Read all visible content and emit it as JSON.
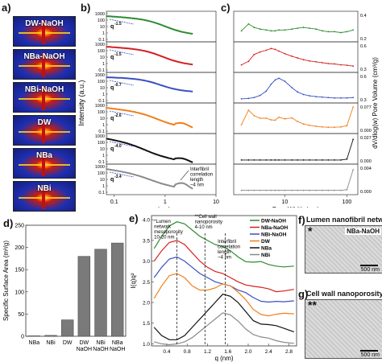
{
  "panels": {
    "a": "a)",
    "b": "b)",
    "c": "c)",
    "d": "d)",
    "e": "e)",
    "f": "f)",
    "g": "g)"
  },
  "colors": {
    "dw_naoh": "#2e8b2e",
    "nba_naoh": "#d42020",
    "nbi_naoh": "#3a4fc0",
    "dw": "#f07f1a",
    "nba": "#111111",
    "nbi": "#8a8a8a",
    "bar": "#7a7a7a"
  },
  "saxs_images": [
    "DW-NaOH",
    "NBa-NaOH",
    "NBi-NaOH",
    "DW",
    "NBa",
    "NBi"
  ],
  "micrographs": {
    "f_title": "Lumen nanofibril network",
    "f_tag": "NBa-NaOH",
    "f_star": "*",
    "g_title": "Cell wall nanoporosity",
    "g_star": "**",
    "scale": "500 nm"
  },
  "chart_data": [
    {
      "id": "b",
      "type": "line",
      "xlabel": "q (nm)",
      "ylabel": "Intensity (a.u.)",
      "x_scale": "log",
      "xlim": [
        0.07,
        10
      ],
      "x_ticks": [
        "0.1",
        "1",
        "10"
      ],
      "y_ticks": [
        "1000",
        "100",
        "10",
        "1",
        "0.1"
      ],
      "series": [
        {
          "name": "DW-NaOH",
          "slope_label": "q",
          "slope_exp": "-1.5"
        },
        {
          "name": "NBa-NaOH",
          "slope_label": "q",
          "slope_exp": "-1.5"
        },
        {
          "name": "NBi-NaOH",
          "slope_label": "q",
          "slope_exp": "-0.7"
        },
        {
          "name": "DW",
          "slope_label": "q",
          "slope_exp": "-2.6"
        },
        {
          "name": "NBa",
          "slope_label": "q",
          "slope_exp": "-4.0"
        },
        {
          "name": "NBi",
          "slope_label": "q",
          "slope_exp": "-3.4"
        }
      ],
      "annotation": "Interfibril correlation length ~4 nm"
    },
    {
      "id": "c",
      "type": "line",
      "xlabel": "Pore Width (nm)",
      "ylabel": "dV/dlog(w) Pore Volume (cm³/g)",
      "x_scale": "log",
      "xlim": [
        1.5,
        150
      ],
      "x_ticks": [
        "10",
        "100"
      ],
      "right_ticks": [
        [
          "0.4",
          "0.2"
        ],
        [
          "0.6",
          "0.3"
        ],
        [
          "0.6",
          "0.3"
        ],
        [
          "0.077",
          "0.000"
        ],
        [
          "0.027",
          "0.000"
        ],
        [
          "0.004",
          "0.000"
        ]
      ],
      "series": [
        {
          "name": "DW-NaOH",
          "x": [
            2,
            2.6,
            3.2,
            4,
            5,
            6,
            7,
            8,
            10,
            13,
            16,
            20,
            25,
            32,
            40,
            50,
            63,
            80,
            100,
            126
          ],
          "y": [
            0.25,
            0.33,
            0.29,
            0.27,
            0.26,
            0.25,
            0.25,
            0.26,
            0.26,
            0.27,
            0.28,
            0.29,
            0.28,
            0.27,
            0.25,
            0.24,
            0.24,
            0.23,
            0.24,
            0.26
          ],
          "ylim": [
            0.15,
            0.45
          ]
        },
        {
          "name": "NBa-NaOH",
          "x": [
            2,
            2.6,
            3.2,
            4,
            5,
            6,
            7,
            8,
            10,
            13,
            16,
            20,
            25,
            32,
            40,
            50,
            63,
            80,
            100,
            126
          ],
          "y": [
            0.12,
            0.2,
            0.36,
            0.42,
            0.46,
            0.5,
            0.48,
            0.44,
            0.38,
            0.32,
            0.28,
            0.24,
            0.21,
            0.19,
            0.17,
            0.15,
            0.14,
            0.12,
            0.11,
            0.09
          ],
          "ylim": [
            0.0,
            0.6
          ]
        },
        {
          "name": "NBi-NaOH",
          "x": [
            2,
            2.6,
            3.2,
            4,
            5,
            6,
            7,
            8,
            10,
            13,
            16,
            20,
            25,
            32,
            40,
            50,
            63,
            80,
            100,
            126
          ],
          "y": [
            0.04,
            0.05,
            0.07,
            0.12,
            0.22,
            0.38,
            0.48,
            0.52,
            0.45,
            0.3,
            0.2,
            0.14,
            0.11,
            0.09,
            0.08,
            0.07,
            0.06,
            0.06,
            0.06,
            0.07
          ],
          "ylim": [
            0.0,
            0.6
          ]
        },
        {
          "name": "DW",
          "x": [
            2,
            2.6,
            3.2,
            4,
            5,
            6,
            7,
            8,
            10,
            13,
            16,
            20,
            25,
            32,
            40,
            50,
            63,
            80,
            100,
            126
          ],
          "y": [
            0.02,
            0.065,
            0.048,
            0.04,
            0.04,
            0.035,
            0.034,
            0.043,
            0.038,
            0.041,
            0.03,
            0.022,
            0.018,
            0.015,
            0.013,
            0.012,
            0.012,
            0.013,
            0.017,
            0.075
          ],
          "ylim": [
            0.0,
            0.08
          ]
        },
        {
          "name": "NBa",
          "x": [
            2,
            2.6,
            3.2,
            4,
            5,
            6,
            7,
            8,
            10,
            13,
            16,
            20,
            25,
            32,
            40,
            50,
            63,
            80,
            100,
            126
          ],
          "y": [
            0.002,
            0.002,
            0.002,
            0.002,
            0.002,
            0.002,
            0.002,
            0.002,
            0.002,
            0.002,
            0.002,
            0.002,
            0.002,
            0.002,
            0.002,
            0.002,
            0.002,
            0.002,
            0.003,
            0.026
          ],
          "ylim": [
            0.0,
            0.03
          ]
        },
        {
          "name": "NBi",
          "x": [
            2,
            2.6,
            3.2,
            4,
            5,
            6,
            7,
            8,
            10,
            13,
            16,
            20,
            25,
            32,
            40,
            50,
            63,
            80,
            100,
            126
          ],
          "y": [
            0.0003,
            0.0003,
            0.0003,
            0.0003,
            0.0003,
            0.0003,
            0.0003,
            0.0003,
            0.0003,
            0.0003,
            0.0003,
            0.0003,
            0.0003,
            0.0003,
            0.0003,
            0.0003,
            0.0003,
            0.0003,
            0.0004,
            0.0035
          ],
          "ylim": [
            0.0,
            0.004
          ]
        }
      ]
    },
    {
      "id": "d",
      "type": "bar",
      "ylabel": "Specific Surface Area (m²/g)",
      "ylim": [
        0,
        250
      ],
      "y_ticks": [
        0,
        50,
        100,
        150,
        200,
        250
      ],
      "categories": [
        "NBa",
        "NBi",
        "DW",
        "DW NaOH",
        "NBi NaOH",
        "NBa NaOH"
      ],
      "values": [
        1,
        2,
        37,
        180,
        196,
        210
      ]
    },
    {
      "id": "e",
      "type": "line",
      "xlabel": "q (nm)",
      "ylabel": "I(q)q²",
      "xlim": [
        0.1,
        2.95
      ],
      "ylim": [
        0.95,
        4.1
      ],
      "x_ticks": [
        0.4,
        0.8,
        1.2,
        1.6,
        2.0,
        2.4,
        2.8
      ],
      "y_ticks": [
        1.0,
        1.5,
        2.0,
        2.5,
        3.0,
        3.5,
        4.0
      ],
      "x_tick_labels": [
        "0.4",
        "0.8",
        "1.2",
        "1.6",
        "2.0",
        "2.4",
        "2.8"
      ],
      "y_tick_labels": [
        "1.0",
        "1.5",
        "2.0",
        "2.5",
        "3.0",
        "3.5",
        "4.0"
      ],
      "series": [
        {
          "name": "DW-NaOH",
          "x": [
            0.15,
            0.3,
            0.45,
            0.6,
            0.75,
            0.9,
            1.05,
            1.2,
            1.35,
            1.5,
            1.65,
            1.8,
            1.95,
            2.1,
            2.25,
            2.4,
            2.55,
            2.7,
            2.9
          ],
          "y": [
            3.3,
            3.6,
            3.85,
            3.95,
            3.9,
            3.75,
            3.6,
            3.5,
            3.4,
            3.35,
            3.25,
            3.1,
            3.0,
            2.95,
            2.95,
            2.9,
            2.9,
            2.9,
            2.9
          ]
        },
        {
          "name": "NBa-NaOH",
          "x": [
            0.15,
            0.3,
            0.45,
            0.6,
            0.75,
            0.9,
            1.05,
            1.2,
            1.35,
            1.5,
            1.65,
            1.8,
            1.95,
            2.1,
            2.25,
            2.4,
            2.55,
            2.7,
            2.9
          ],
          "y": [
            3.0,
            3.25,
            3.45,
            3.5,
            3.4,
            3.2,
            3.0,
            2.85,
            2.75,
            2.7,
            2.6,
            2.5,
            2.4,
            2.35,
            2.35,
            2.35,
            2.3,
            2.3,
            2.3
          ]
        },
        {
          "name": "NBi-NaOH",
          "x": [
            0.15,
            0.3,
            0.45,
            0.6,
            0.75,
            0.9,
            1.05,
            1.2,
            1.35,
            1.5,
            1.65,
            1.8,
            1.95,
            2.1,
            2.25,
            2.4,
            2.55,
            2.7,
            2.9
          ],
          "y": [
            2.6,
            2.85,
            3.05,
            3.1,
            3.0,
            2.85,
            2.7,
            2.6,
            2.5,
            2.45,
            2.4,
            2.3,
            2.2,
            2.1,
            2.05,
            2.05,
            2.05,
            2.0,
            2.0
          ]
        },
        {
          "name": "DW",
          "x": [
            0.15,
            0.3,
            0.45,
            0.6,
            0.75,
            0.9,
            1.05,
            1.2,
            1.35,
            1.5,
            1.65,
            1.8,
            1.95,
            2.1,
            2.25,
            2.4,
            2.55,
            2.7,
            2.9
          ],
          "y": [
            2.1,
            2.4,
            2.65,
            2.7,
            2.6,
            2.4,
            2.3,
            2.3,
            2.35,
            2.45,
            2.4,
            2.25,
            2.05,
            1.85,
            1.75,
            1.7,
            1.7,
            1.7,
            1.7
          ]
        },
        {
          "name": "NBa",
          "x": [
            0.15,
            0.3,
            0.45,
            0.6,
            0.75,
            0.9,
            1.05,
            1.2,
            1.35,
            1.5,
            1.65,
            1.8,
            1.95,
            2.1,
            2.25,
            2.4,
            2.55,
            2.7,
            2.9
          ],
          "y": [
            1.4,
            1.2,
            1.1,
            1.1,
            1.2,
            1.4,
            1.6,
            1.8,
            2.0,
            2.2,
            2.15,
            2.0,
            1.8,
            1.6,
            1.5,
            1.45,
            1.4,
            1.35,
            1.3
          ]
        },
        {
          "name": "NBi",
          "x": [
            0.15,
            0.3,
            0.45,
            0.6,
            0.75,
            0.9,
            1.05,
            1.2,
            1.35,
            1.5,
            1.65,
            1.8,
            1.95,
            2.1,
            2.25,
            2.4,
            2.55,
            2.7,
            2.9
          ],
          "y": [
            1.05,
            1.0,
            0.98,
            1.0,
            1.05,
            1.15,
            1.3,
            1.45,
            1.6,
            1.75,
            1.7,
            1.55,
            1.4,
            1.25,
            1.15,
            1.1,
            1.05,
            1.05,
            1.05
          ]
        }
      ],
      "vlines": [
        0.6,
        1.15,
        1.55
      ],
      "annotations": [
        "*Lumen network mesoporosity 10-20 nm",
        "**Cell wall nanoporosity 4-10 nm",
        "Interfibril correlation length ~4 nm"
      ]
    }
  ]
}
